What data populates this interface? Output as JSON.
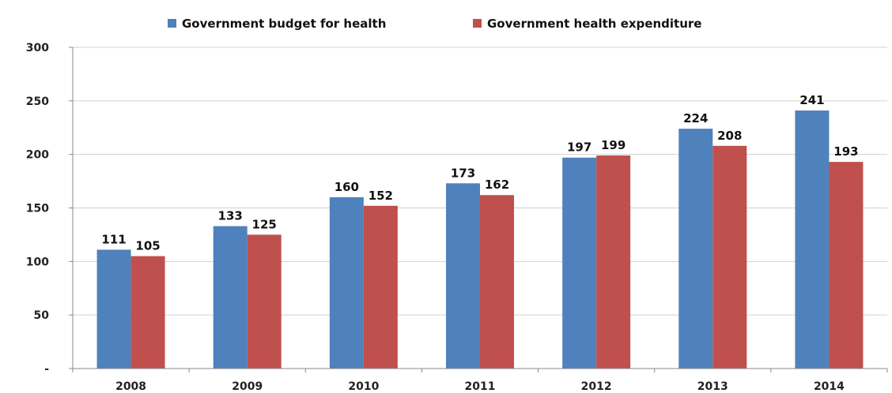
{
  "chart_data": {
    "type": "bar",
    "title": "",
    "xlabel": "",
    "ylabel": "",
    "categories": [
      "2008",
      "2009",
      "2010",
      "2011",
      "2012",
      "2013",
      "2014"
    ],
    "series": [
      {
        "name": "Government budget for health",
        "color": "#4f81bd",
        "values": [
          111,
          133,
          160,
          173,
          197,
          224,
          241
        ]
      },
      {
        "name": "Government health expenditure",
        "color": "#c0504d",
        "values": [
          105,
          125,
          152,
          162,
          199,
          208,
          193
        ]
      }
    ],
    "ylim": [
      0,
      300
    ],
    "yticks": [
      0,
      50,
      100,
      150,
      200,
      250,
      300
    ],
    "ytick_labels": [
      "-",
      "50",
      "100",
      "150",
      "200",
      "250",
      "300"
    ],
    "data_labels": true,
    "grid": "horizontal",
    "legend_position": "top-center"
  }
}
